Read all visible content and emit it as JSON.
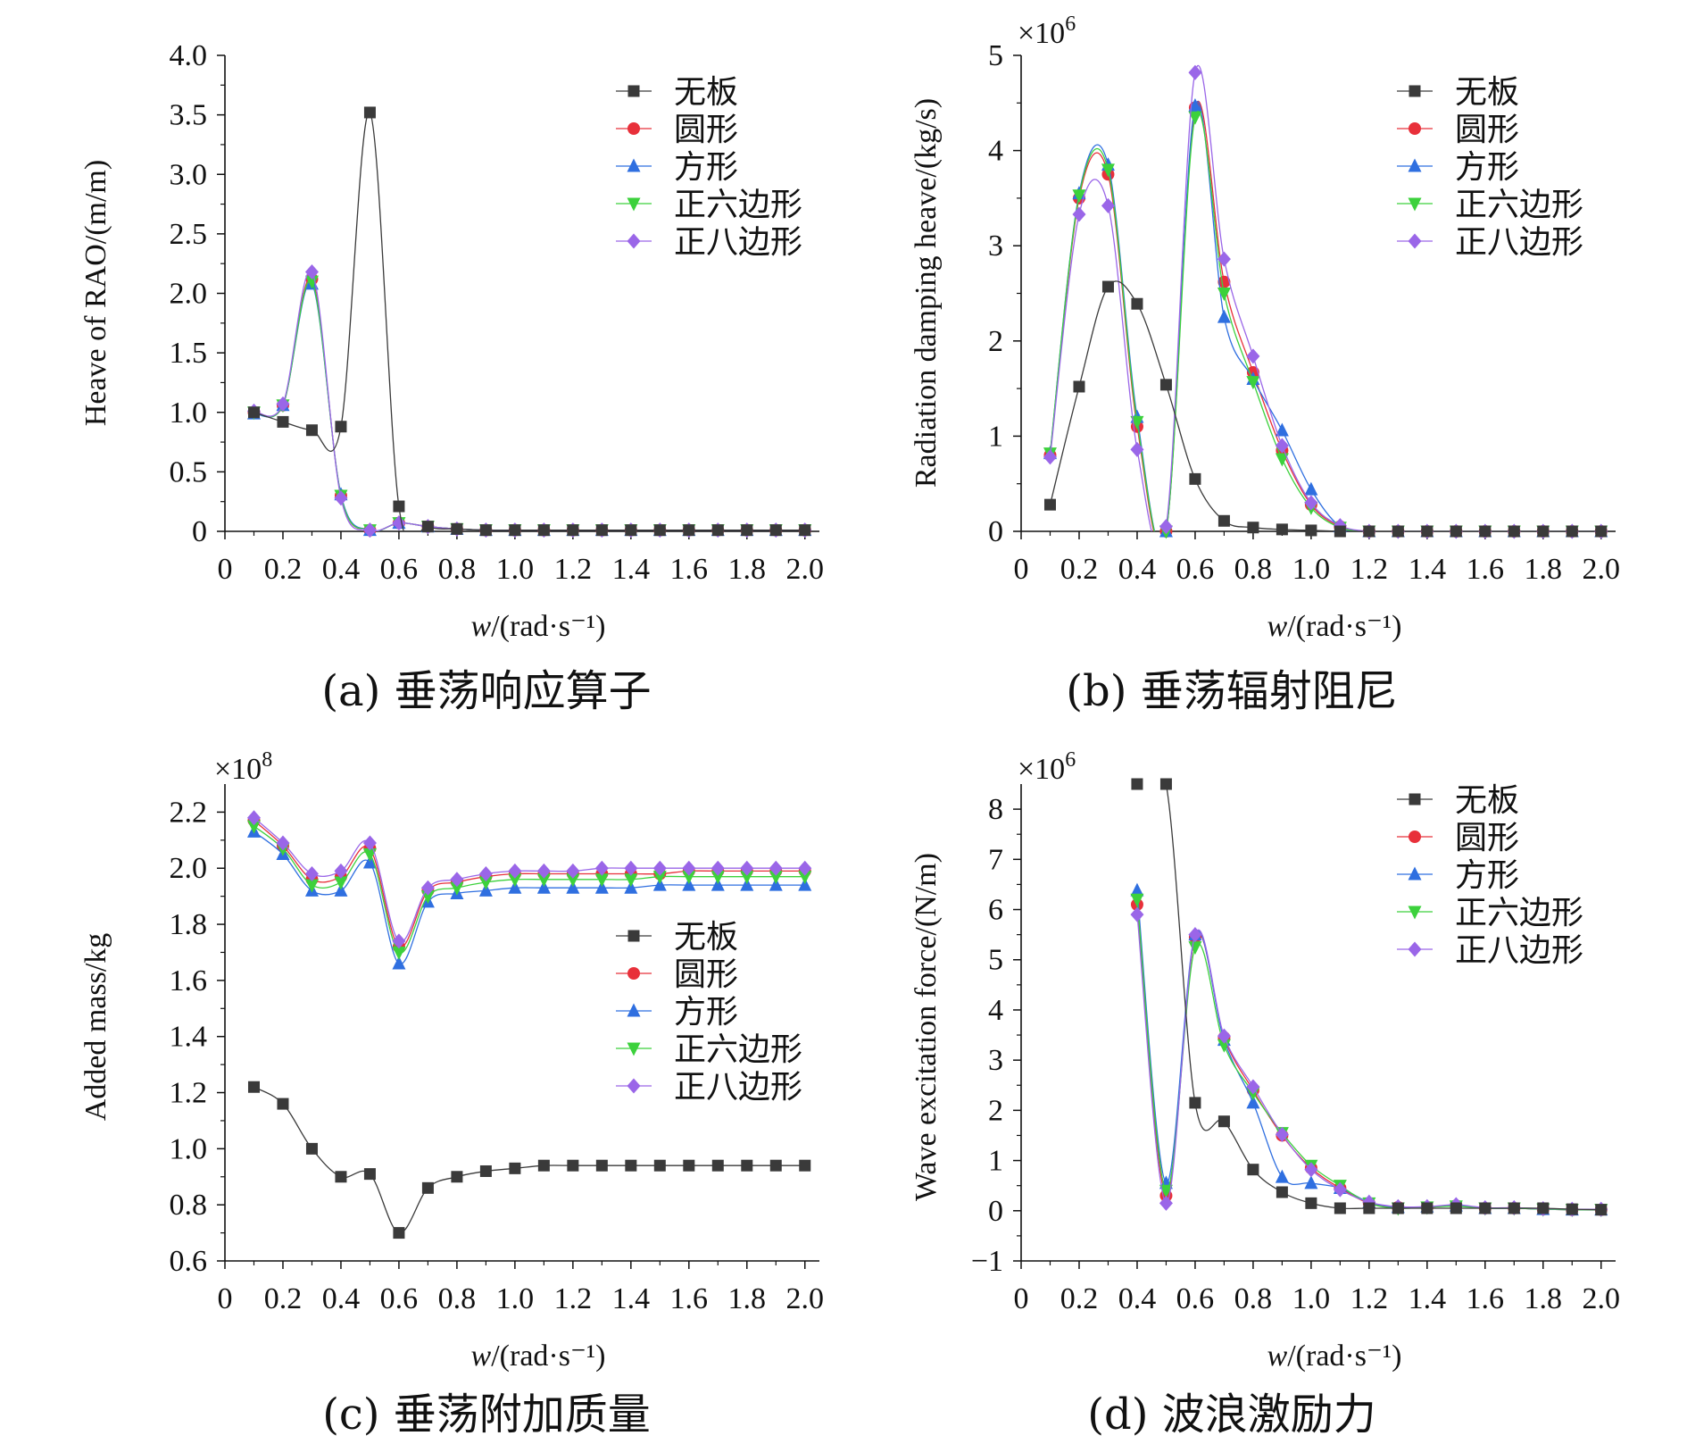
{
  "figure": {
    "x_axis_label_prefix": "w",
    "x_axis_label_unit": "/(rad·s⁻¹)",
    "x_ticks": [
      "0",
      "0.2",
      "0.4",
      "0.6",
      "0.8",
      "1.0",
      "1.2",
      "1.4",
      "1.6",
      "1.8",
      "2.0"
    ]
  },
  "legend": {
    "entries": [
      "无板",
      "圆形",
      "方形",
      "正六边形",
      "正八边形"
    ],
    "colors": [
      "#3a3a3a",
      "#e8303a",
      "#2f6fe0",
      "#3cd13c",
      "#9a66e8"
    ],
    "markers": [
      "square",
      "circle",
      "triangle-up",
      "triangle-down",
      "diamond"
    ]
  },
  "chart_data": [
    {
      "id": "a",
      "type": "line",
      "caption": "(a) 垂荡响应算子",
      "ylabel": "Heave of RAO/(m/m)",
      "multiplier_base": "",
      "multiplier_exp": "",
      "xlim": [
        0,
        2.05
      ],
      "ylim": [
        0,
        4.0
      ],
      "yticks": [
        0,
        0.5,
        1.0,
        1.5,
        2.0,
        2.5,
        3.0,
        3.5,
        4.0
      ],
      "ytick_labels": [
        "0",
        "0.5",
        "1.0",
        "1.5",
        "2.0",
        "2.5",
        "3.0",
        "3.5",
        "4.0"
      ],
      "x": [
        0.1,
        0.2,
        0.3,
        0.4,
        0.5,
        0.6,
        0.7,
        0.8,
        0.9,
        1.0,
        1.1,
        1.2,
        1.3,
        1.4,
        1.5,
        1.6,
        1.7,
        1.8,
        1.9,
        2.0
      ],
      "series": [
        {
          "name": "无板",
          "values": [
            1.0,
            0.92,
            0.85,
            0.88,
            3.52,
            0.21,
            0.04,
            0.02,
            0.01,
            0.01,
            0.01,
            0.01,
            0.01,
            0.01,
            0.01,
            0.01,
            0.01,
            0.01,
            0.01,
            0.01
          ]
        },
        {
          "name": "圆形",
          "values": [
            1.0,
            1.06,
            2.12,
            0.3,
            0.01,
            0.07,
            0.04,
            0.02,
            0.01,
            0.01,
            0.01,
            0.01,
            0.01,
            0.01,
            0.01,
            0.01,
            0.01,
            0.01,
            0.01,
            0.01
          ]
        },
        {
          "name": "方形",
          "values": [
            0.99,
            1.06,
            2.08,
            0.31,
            0.01,
            0.07,
            0.04,
            0.02,
            0.01,
            0.01,
            0.01,
            0.01,
            0.01,
            0.01,
            0.01,
            0.01,
            0.01,
            0.01,
            0.01,
            0.01
          ]
        },
        {
          "name": "正六边形",
          "values": [
            1.0,
            1.06,
            2.1,
            0.3,
            0.01,
            0.07,
            0.04,
            0.02,
            0.01,
            0.01,
            0.01,
            0.01,
            0.01,
            0.01,
            0.01,
            0.01,
            0.01,
            0.01,
            0.01,
            0.01
          ]
        },
        {
          "name": "正八边形",
          "values": [
            1.01,
            1.07,
            2.18,
            0.28,
            0.01,
            0.07,
            0.04,
            0.02,
            0.01,
            0.01,
            0.01,
            0.01,
            0.01,
            0.01,
            0.01,
            0.01,
            0.01,
            0.01,
            0.01,
            0.01
          ]
        }
      ]
    },
    {
      "id": "b",
      "type": "line",
      "caption": "(b) 垂荡辐射阻尼",
      "ylabel": "Radiation damping heave/(kg/s)",
      "multiplier_base": "×10",
      "multiplier_exp": "6",
      "xlim": [
        0,
        2.05
      ],
      "ylim": [
        0,
        5
      ],
      "yticks": [
        0,
        1,
        2,
        3,
        4,
        5
      ],
      "ytick_labels": [
        "0",
        "1",
        "2",
        "3",
        "4",
        "5"
      ],
      "x": [
        0.1,
        0.2,
        0.3,
        0.4,
        0.5,
        0.6,
        0.7,
        0.8,
        0.9,
        1.0,
        1.1,
        1.2,
        1.3,
        1.4,
        1.5,
        1.6,
        1.7,
        1.8,
        1.9,
        2.0
      ],
      "series": [
        {
          "name": "无板",
          "values": [
            0.28,
            1.52,
            2.57,
            2.39,
            1.54,
            0.55,
            0.11,
            0.04,
            0.02,
            0.01,
            0,
            0,
            0,
            0,
            0,
            0,
            0,
            0,
            0,
            0
          ]
        },
        {
          "name": "圆形",
          "values": [
            0.8,
            3.5,
            3.75,
            1.1,
            0,
            4.45,
            2.62,
            1.67,
            0.85,
            0.28,
            0.05,
            0,
            0,
            0,
            0,
            0,
            0,
            0,
            0,
            0
          ]
        },
        {
          "name": "方形",
          "values": [
            0.82,
            3.55,
            3.85,
            1.2,
            0,
            4.47,
            2.25,
            1.6,
            1.06,
            0.44,
            0.05,
            0,
            0,
            0,
            0,
            0,
            0,
            0,
            0,
            0
          ]
        },
        {
          "name": "正六边形",
          "values": [
            0.82,
            3.53,
            3.8,
            1.15,
            0,
            4.35,
            2.5,
            1.57,
            0.76,
            0.25,
            0.04,
            0,
            0,
            0,
            0,
            0,
            0,
            0,
            0,
            0
          ]
        },
        {
          "name": "正八边形",
          "values": [
            0.78,
            3.33,
            3.42,
            0.86,
            0.05,
            4.82,
            2.86,
            1.84,
            0.9,
            0.3,
            0.06,
            0,
            0,
            0,
            0,
            0,
            0,
            0,
            0,
            0
          ]
        }
      ]
    },
    {
      "id": "c",
      "type": "line",
      "caption": "(c) 垂荡附加质量",
      "ylabel": "Added mass/kg",
      "multiplier_base": "×10",
      "multiplier_exp": "8",
      "xlim": [
        0,
        2.05
      ],
      "ylim": [
        0.6,
        2.3
      ],
      "yticks": [
        0.6,
        0.8,
        1.0,
        1.2,
        1.4,
        1.6,
        1.8,
        2.0,
        2.2
      ],
      "ytick_labels": [
        "0.6",
        "0.8",
        "1.0",
        "1.2",
        "1.4",
        "1.6",
        "1.8",
        "2.0",
        "2.2"
      ],
      "x": [
        0.1,
        0.2,
        0.3,
        0.4,
        0.5,
        0.6,
        0.7,
        0.8,
        0.9,
        1.0,
        1.1,
        1.2,
        1.3,
        1.4,
        1.5,
        1.6,
        1.7,
        1.8,
        1.9,
        2.0
      ],
      "series": [
        {
          "name": "无板",
          "values": [
            1.22,
            1.16,
            1.0,
            0.9,
            0.91,
            0.7,
            0.86,
            0.9,
            0.92,
            0.93,
            0.94,
            0.94,
            0.94,
            0.94,
            0.94,
            0.94,
            0.94,
            0.94,
            0.94,
            0.94
          ]
        },
        {
          "name": "圆形",
          "values": [
            2.17,
            2.08,
            1.96,
            1.97,
            2.07,
            1.72,
            1.92,
            1.95,
            1.97,
            1.98,
            1.98,
            1.98,
            1.98,
            1.98,
            1.98,
            1.99,
            1.99,
            1.99,
            1.99,
            1.99
          ]
        },
        {
          "name": "方形",
          "values": [
            2.13,
            2.05,
            1.92,
            1.92,
            2.02,
            1.66,
            1.88,
            1.91,
            1.92,
            1.93,
            1.93,
            1.93,
            1.93,
            1.93,
            1.94,
            1.94,
            1.94,
            1.94,
            1.94,
            1.94
          ]
        },
        {
          "name": "正六边形",
          "values": [
            2.15,
            2.07,
            1.94,
            1.95,
            2.05,
            1.7,
            1.9,
            1.93,
            1.95,
            1.96,
            1.96,
            1.96,
            1.96,
            1.96,
            1.97,
            1.97,
            1.97,
            1.97,
            1.97,
            1.97
          ]
        },
        {
          "name": "正八边形",
          "values": [
            2.18,
            2.09,
            1.98,
            1.99,
            2.09,
            1.74,
            1.93,
            1.96,
            1.98,
            1.99,
            1.99,
            1.99,
            2.0,
            2.0,
            2.0,
            2.0,
            2.0,
            2.0,
            2.0,
            2.0
          ]
        }
      ]
    },
    {
      "id": "d",
      "type": "line",
      "caption": "(d) 波浪激励力",
      "ylabel": "Wave excitation force/(N/m)",
      "multiplier_base": "×10",
      "multiplier_exp": "6",
      "xlim": [
        0,
        2.05
      ],
      "ylim": [
        -1,
        8.5
      ],
      "yticks": [
        -1,
        0,
        1,
        2,
        3,
        4,
        5,
        6,
        7,
        8
      ],
      "ytick_labels": [
        "−1",
        "0",
        "1",
        "2",
        "3",
        "4",
        "5",
        "6",
        "7",
        "8"
      ],
      "x": [
        0.4,
        0.5,
        0.6,
        0.7,
        0.8,
        0.9,
        1.0,
        1.1,
        1.2,
        1.3,
        1.4,
        1.5,
        1.6,
        1.7,
        1.8,
        1.9,
        2.0
      ],
      "series": [
        {
          "name": "无板",
          "values": [
            8.5,
            8.5,
            2.15,
            1.78,
            0.82,
            0.37,
            0.15,
            0.05,
            0.05,
            0.05,
            0.05,
            0.05,
            0.05,
            0.05,
            0.05,
            0.03,
            0.02
          ]
        },
        {
          "name": "圆形",
          "values": [
            6.1,
            0.3,
            5.45,
            3.45,
            2.4,
            1.5,
            0.85,
            0.45,
            0.15,
            0.07,
            0.07,
            0.1,
            0.05,
            0.05,
            0.03,
            0.02,
            0.02
          ]
        },
        {
          "name": "方形",
          "values": [
            6.38,
            0.55,
            5.5,
            3.4,
            2.15,
            0.67,
            0.55,
            0.45,
            0.17,
            0.07,
            0.08,
            0.1,
            0.05,
            0.05,
            0.03,
            0.02,
            0.02
          ]
        },
        {
          "name": "正六边形",
          "values": [
            6.2,
            0.4,
            5.25,
            3.3,
            2.35,
            1.55,
            0.9,
            0.5,
            0.15,
            0.05,
            0.07,
            0.09,
            0.05,
            0.05,
            0.03,
            0.02,
            0.02
          ]
        },
        {
          "name": "正八边形",
          "values": [
            5.9,
            0.15,
            5.5,
            3.48,
            2.47,
            1.52,
            0.82,
            0.42,
            0.17,
            0.08,
            0.08,
            0.12,
            0.06,
            0.06,
            0.04,
            0.03,
            0.03
          ]
        }
      ]
    }
  ]
}
